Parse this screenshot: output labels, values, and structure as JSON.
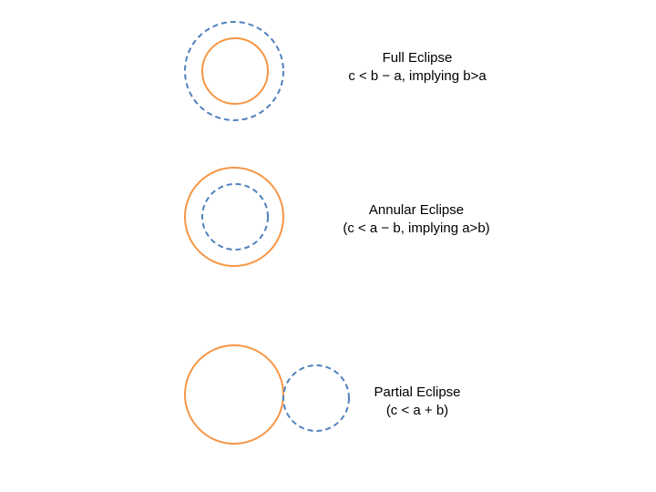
{
  "colors": {
    "orange_circle": "#F79646",
    "blue_dashed_circle": "#4F81BD",
    "background": "#FFFFFF",
    "text": "#000000"
  },
  "eclipses": [
    {
      "name": "Full Eclipse",
      "condition": "c < b − a, implying b>a"
    },
    {
      "name": "Annular Eclipse",
      "condition": "(c < a − b, implying a>b)"
    },
    {
      "name": "Partial Eclipse",
      "condition": "(c < a + b)"
    }
  ]
}
